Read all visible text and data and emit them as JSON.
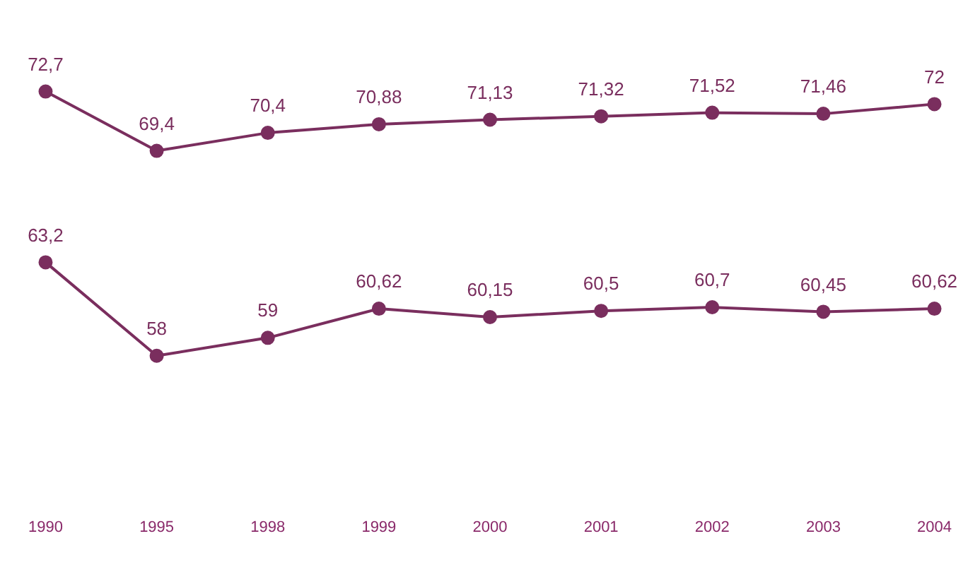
{
  "chart_data": {
    "type": "line",
    "categories": [
      "1990",
      "1995",
      "1998",
      "1999",
      "2000",
      "2001",
      "2002",
      "2003",
      "2004"
    ],
    "series": [
      {
        "color": "#7a2e5e",
        "values": [
          72.7,
          69.4,
          70.4,
          70.88,
          71.13,
          71.32,
          71.52,
          71.46,
          72
        ],
        "value_labels": [
          "72,7",
          "69,4",
          "70,4",
          "70,88",
          "71,13",
          "71,32",
          "71,52",
          "71,46",
          "72"
        ]
      },
      {
        "color": "#7a2e5e",
        "values": [
          63.2,
          58,
          59,
          60.62,
          60.15,
          60.5,
          60.7,
          60.45,
          60.62
        ],
        "value_labels": [
          "63,2",
          "58",
          "59",
          "60,62",
          "60,15",
          "60,5",
          "60,7",
          "60,45",
          "60,62"
        ]
      }
    ],
    "tick_labels": "x",
    "grid": false,
    "legend": false,
    "marker": "circle",
    "line_style": "solid"
  }
}
